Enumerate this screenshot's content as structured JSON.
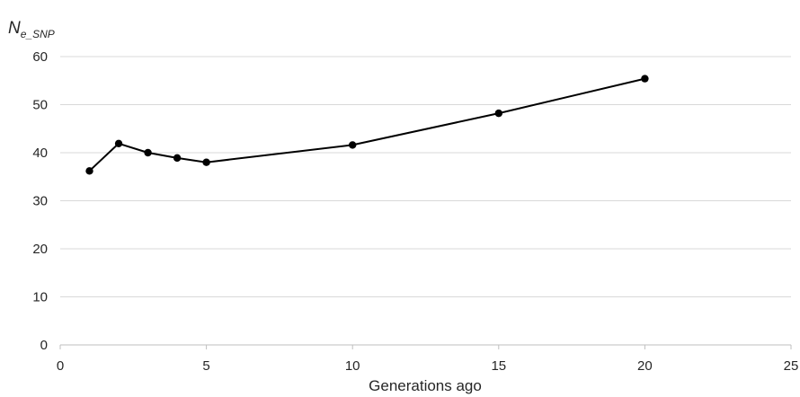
{
  "chart_data": {
    "type": "line",
    "title": "",
    "ylabel": "N",
    "ylabel_subscript": "e_SNP",
    "xlabel": "Generations ago",
    "xlim": [
      0,
      25
    ],
    "ylim": [
      0,
      60
    ],
    "xticks": [
      0,
      5,
      10,
      15,
      20,
      25
    ],
    "yticks": [
      0,
      10,
      20,
      30,
      40,
      50,
      60
    ],
    "grid": "horizontal",
    "colors": {
      "line": "#000000",
      "grid": "#d9d9d9",
      "axis": "#bfbfbf",
      "text": "#262626"
    },
    "series": [
      {
        "x": [
          1,
          2,
          3,
          4,
          5,
          10,
          15,
          20
        ],
        "values": [
          36.2,
          41.9,
          40.0,
          38.9,
          38.0,
          41.6,
          48.2,
          55.4
        ]
      }
    ]
  }
}
